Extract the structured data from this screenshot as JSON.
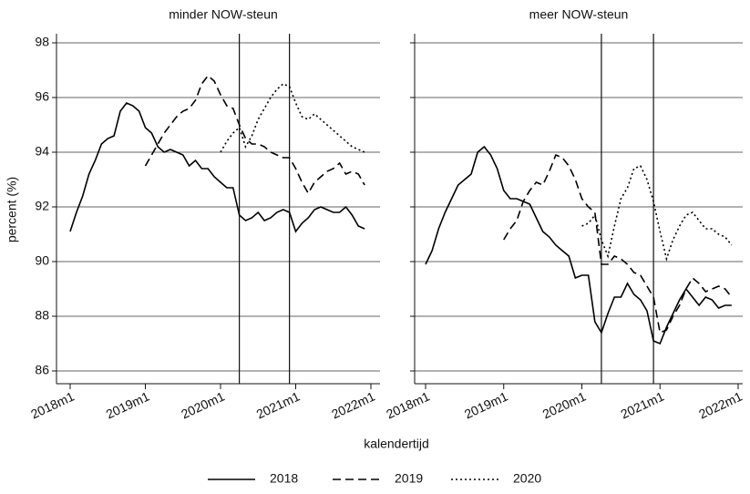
{
  "chart_data": [
    {
      "type": "line",
      "title": "minder NOW-steun",
      "y_label": "percent (%)",
      "x_label": "kalendertijd",
      "x": [
        "2018m1",
        "2018m2",
        "2018m3",
        "2018m4",
        "2018m5",
        "2018m6",
        "2018m7",
        "2018m8",
        "2018m9",
        "2018m10",
        "2018m11",
        "2018m12",
        "2019m1",
        "2019m2",
        "2019m3",
        "2019m4",
        "2019m5",
        "2019m6",
        "2019m7",
        "2019m8",
        "2019m9",
        "2019m10",
        "2019m11",
        "2019m12",
        "2020m1",
        "2020m2",
        "2020m3",
        "2020m4",
        "2020m5",
        "2020m6",
        "2020m7",
        "2020m8",
        "2020m9",
        "2020m10",
        "2020m11",
        "2020m12",
        "2021m1",
        "2021m2",
        "2021m3",
        "2021m4",
        "2021m5",
        "2021m6",
        "2021m7",
        "2021m8",
        "2021m9",
        "2021m10",
        "2021m11",
        "2021m12"
      ],
      "xlim": [
        "2018m1",
        "2022m1"
      ],
      "xticks": [
        "2018m1",
        "2019m1",
        "2020m1",
        "2021m1",
        "2022m1"
      ],
      "ylim": [
        85.6,
        98.2
      ],
      "yticks": [
        86,
        88,
        90,
        92,
        94,
        96,
        98
      ],
      "grid": true,
      "vlines": [
        "2020m4",
        "2020m12"
      ],
      "series": [
        {
          "name": "2018",
          "color": "#000000",
          "dash": "solid",
          "values": [
            91.1,
            91.8,
            92.4,
            93.2,
            93.7,
            94.3,
            94.5,
            94.6,
            95.5,
            95.8,
            95.7,
            95.5,
            94.9,
            94.7,
            94.2,
            94.0,
            94.1,
            94.0,
            93.9,
            93.5,
            93.7,
            93.4,
            93.4,
            93.1,
            92.9,
            92.7,
            92.7,
            91.7,
            91.5,
            91.6,
            91.8,
            91.5,
            91.6,
            91.8,
            91.9,
            91.8,
            91.1,
            91.4,
            91.6,
            91.9,
            92.0,
            91.9,
            91.8,
            91.8,
            92.0,
            91.7,
            91.3,
            91.2
          ]
        },
        {
          "name": "2019",
          "color": "#000000",
          "dash": "dashed",
          "values": [
            null,
            null,
            null,
            null,
            null,
            null,
            null,
            null,
            null,
            null,
            null,
            null,
            93.5,
            93.9,
            94.3,
            94.7,
            95.0,
            95.3,
            95.5,
            95.6,
            95.9,
            96.5,
            96.8,
            96.6,
            96.1,
            95.7,
            95.6,
            95.0,
            94.5,
            94.3,
            94.3,
            94.2,
            94.0,
            93.9,
            93.8,
            93.8,
            93.4,
            92.9,
            92.5,
            92.9,
            93.1,
            93.3,
            93.4,
            93.6,
            93.2,
            93.3,
            93.2,
            92.8
          ]
        },
        {
          "name": "2020",
          "color": "#000000",
          "dash": "dotted",
          "values": [
            null,
            null,
            null,
            null,
            null,
            null,
            null,
            null,
            null,
            null,
            null,
            null,
            null,
            null,
            null,
            null,
            null,
            null,
            null,
            null,
            null,
            null,
            null,
            null,
            94.0,
            94.4,
            94.7,
            94.9,
            94.2,
            94.6,
            95.2,
            95.6,
            96.0,
            96.3,
            96.5,
            96.4,
            95.8,
            95.3,
            95.2,
            95.4,
            95.2,
            95.0,
            94.8,
            94.6,
            94.4,
            94.2,
            94.1,
            94.0
          ]
        }
      ]
    },
    {
      "type": "line",
      "title": "meer NOW-steun",
      "x": [
        "2018m1",
        "2018m2",
        "2018m3",
        "2018m4",
        "2018m5",
        "2018m6",
        "2018m7",
        "2018m8",
        "2018m9",
        "2018m10",
        "2018m11",
        "2018m12",
        "2019m1",
        "2019m2",
        "2019m3",
        "2019m4",
        "2019m5",
        "2019m6",
        "2019m7",
        "2019m8",
        "2019m9",
        "2019m10",
        "2019m11",
        "2019m12",
        "2020m1",
        "2020m2",
        "2020m3",
        "2020m4",
        "2020m5",
        "2020m6",
        "2020m7",
        "2020m8",
        "2020m9",
        "2020m10",
        "2020m11",
        "2020m12",
        "2021m1",
        "2021m2",
        "2021m3",
        "2021m4",
        "2021m5",
        "2021m6",
        "2021m7",
        "2021m8",
        "2021m9",
        "2021m10",
        "2021m11",
        "2021m12"
      ],
      "xlim": [
        "2018m1",
        "2022m1"
      ],
      "xticks": [
        "2018m1",
        "2019m1",
        "2020m1",
        "2021m1",
        "2022m1"
      ],
      "ylim": [
        85.6,
        98.2
      ],
      "yticks": [
        86,
        88,
        90,
        92,
        94,
        96,
        98
      ],
      "grid": true,
      "vlines": [
        "2020m4",
        "2020m12"
      ],
      "series": [
        {
          "color": "#000000",
          "dash": "solid",
          "values": [
            89.9,
            90.4,
            91.2,
            91.8,
            92.3,
            92.8,
            93.0,
            93.2,
            94.0,
            94.2,
            93.9,
            93.4,
            92.6,
            92.3,
            92.3,
            92.2,
            92.1,
            91.6,
            91.1,
            90.9,
            90.6,
            90.4,
            90.2,
            89.4,
            89.5,
            89.5,
            87.8,
            87.4,
            88.1,
            88.7,
            88.7,
            89.2,
            88.8,
            88.6,
            88.2,
            87.1,
            87.0,
            87.6,
            88.1,
            88.6,
            89.0,
            88.7,
            88.4,
            88.7,
            88.6,
            88.3,
            88.4,
            88.4
          ]
        },
        {
          "color": "#000000",
          "dash": "dashed",
          "values": [
            null,
            null,
            null,
            null,
            null,
            null,
            null,
            null,
            null,
            null,
            null,
            null,
            90.8,
            91.2,
            91.5,
            92.2,
            92.6,
            92.9,
            92.8,
            93.3,
            93.9,
            93.8,
            93.5,
            93.0,
            92.3,
            92.0,
            91.8,
            89.9,
            89.9,
            90.2,
            90.1,
            89.9,
            89.6,
            89.5,
            89.1,
            88.7,
            87.4,
            87.5,
            88.0,
            88.4,
            89.0,
            89.4,
            89.2,
            88.9,
            89.0,
            89.1,
            89.0,
            88.7
          ]
        },
        {
          "color": "#000000",
          "dash": "dotted",
          "values": [
            null,
            null,
            null,
            null,
            null,
            null,
            null,
            null,
            null,
            null,
            null,
            null,
            null,
            null,
            null,
            null,
            null,
            null,
            null,
            null,
            null,
            null,
            null,
            null,
            91.3,
            91.4,
            91.7,
            90.8,
            90.2,
            91.3,
            92.3,
            92.7,
            93.4,
            93.5,
            93.0,
            92.2,
            91.1,
            90.1,
            90.8,
            91.3,
            91.7,
            91.8,
            91.5,
            91.2,
            91.2,
            91.0,
            90.9,
            90.6
          ]
        }
      ]
    }
  ]
}
